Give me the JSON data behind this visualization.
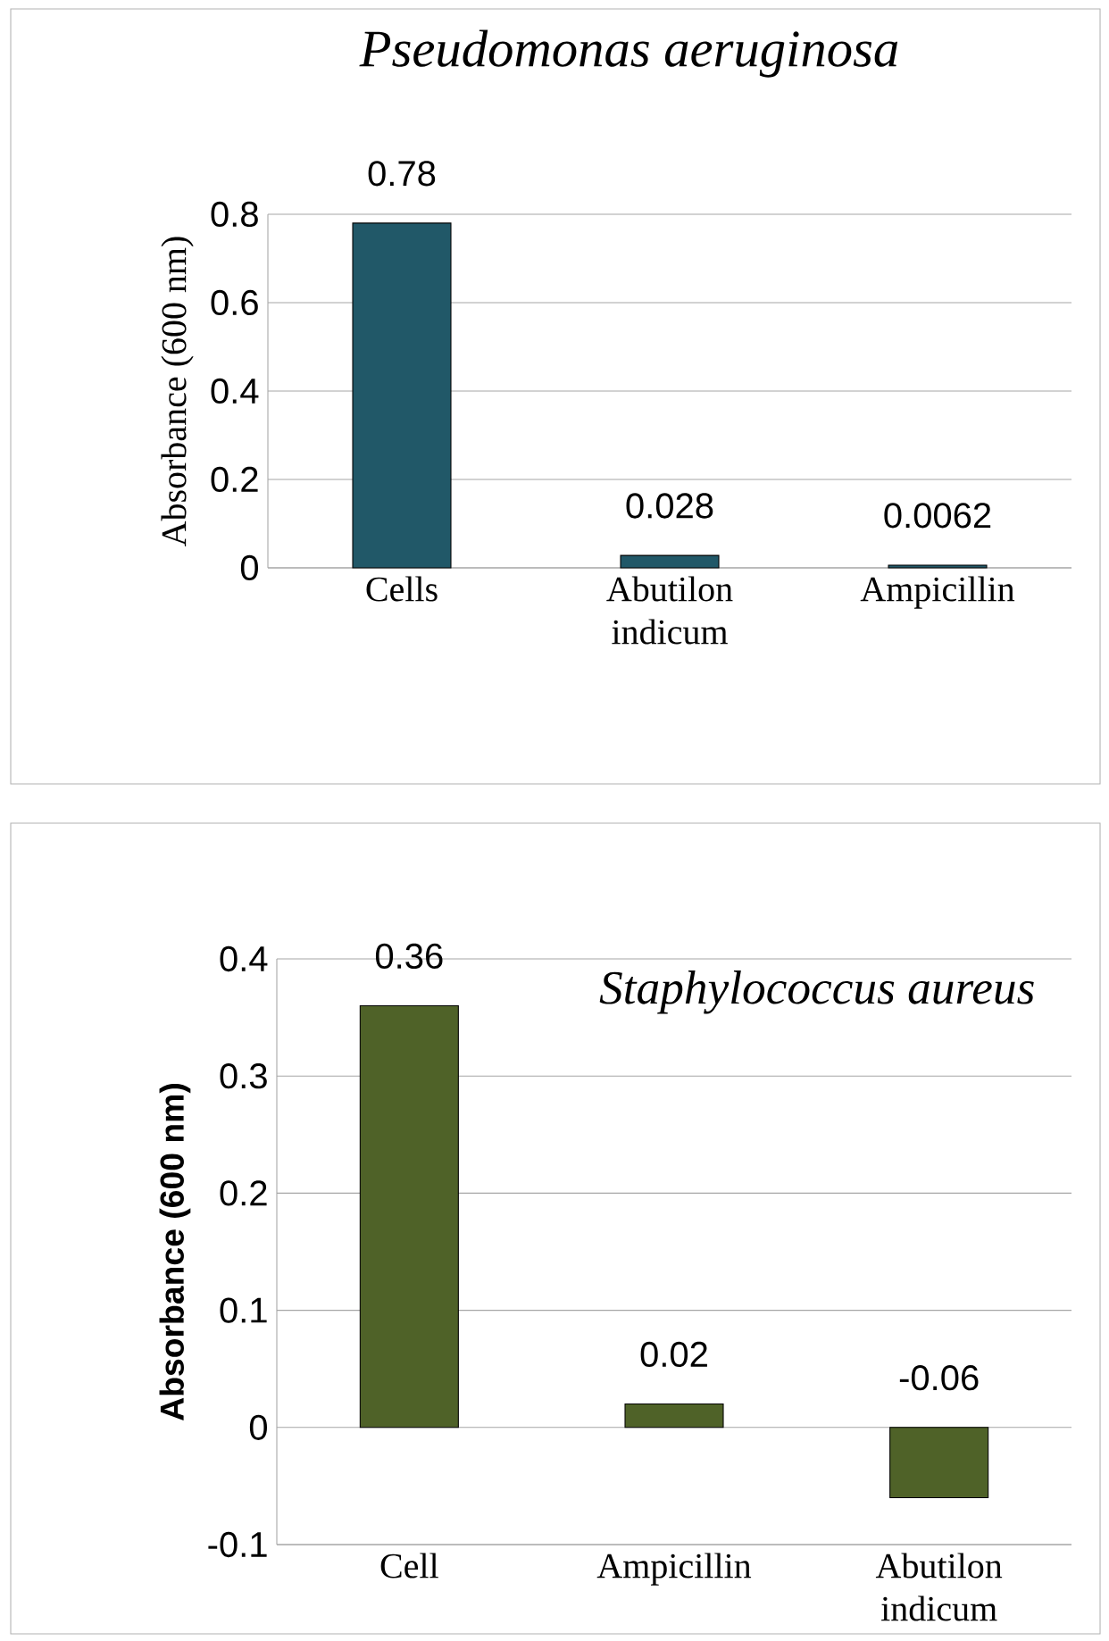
{
  "chart_data": [
    {
      "type": "bar",
      "title": "Pseudomonas aeruginosa",
      "ylabel": "Absorbance (600 nm)",
      "categories": [
        "Cells",
        "Abutilon indicum",
        "Ampicillin"
      ],
      "values": [
        0.78,
        0.028,
        0.0062
      ],
      "color": "#215868",
      "ylim": [
        0,
        0.8
      ],
      "yticks": [
        0,
        0.2,
        0.4,
        0.6,
        0.8
      ],
      "grid": "y",
      "data_labels": true
    },
    {
      "type": "bar",
      "title": "Staphylococcus aureus",
      "ylabel": "Absorbance (600 nm)",
      "categories": [
        "Cell",
        "Ampicillin",
        "Abutilon indicum"
      ],
      "values": [
        0.36,
        0.02,
        -0.06
      ],
      "color": "#4f6228",
      "ylim": [
        -0.1,
        0.4
      ],
      "yticks": [
        -0.1,
        0,
        0.1,
        0.2,
        0.3,
        0.4
      ],
      "grid": "y",
      "data_labels": true
    }
  ]
}
